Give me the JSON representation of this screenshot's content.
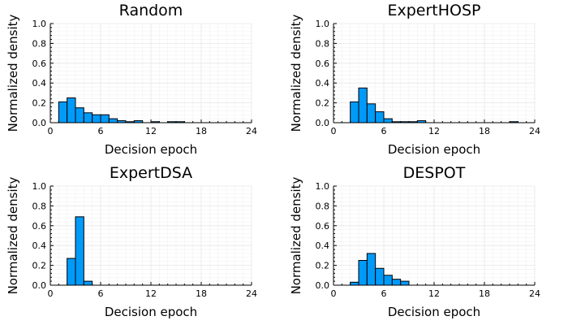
{
  "bar_color": "#009af9",
  "chart_data": [
    {
      "type": "bar",
      "title": "Random",
      "xlabel": "Decision epoch",
      "ylabel": "Normalized density",
      "xlim": [
        0,
        24
      ],
      "ylim": [
        0,
        1
      ],
      "xticks": [
        "0",
        "6",
        "12",
        "18",
        "24"
      ],
      "yticks": [
        "0.0",
        "0.2",
        "0.4",
        "0.6",
        "0.8",
        "1.0"
      ],
      "grid": true,
      "legend": "none",
      "bin_width": 1,
      "bins": [
        {
          "x": 1,
          "y": 0.21
        },
        {
          "x": 2,
          "y": 0.25
        },
        {
          "x": 3,
          "y": 0.15
        },
        {
          "x": 4,
          "y": 0.1
        },
        {
          "x": 5,
          "y": 0.08
        },
        {
          "x": 6,
          "y": 0.08
        },
        {
          "x": 7,
          "y": 0.04
        },
        {
          "x": 8,
          "y": 0.02
        },
        {
          "x": 9,
          "y": 0.01
        },
        {
          "x": 10,
          "y": 0.02
        },
        {
          "x": 12,
          "y": 0.01
        },
        {
          "x": 14,
          "y": 0.01
        },
        {
          "x": 15,
          "y": 0.01
        }
      ]
    },
    {
      "type": "bar",
      "title": "ExpertHOSP",
      "xlabel": "Decision epoch",
      "ylabel": "Normalized density",
      "xlim": [
        0,
        24
      ],
      "ylim": [
        0,
        1
      ],
      "xticks": [
        "0",
        "6",
        "12",
        "18",
        "24"
      ],
      "yticks": [
        "0.0",
        "0.2",
        "0.4",
        "0.6",
        "0.8",
        "1.0"
      ],
      "grid": true,
      "legend": "none",
      "bin_width": 1,
      "bins": [
        {
          "x": 2,
          "y": 0.21
        },
        {
          "x": 3,
          "y": 0.35
        },
        {
          "x": 4,
          "y": 0.19
        },
        {
          "x": 5,
          "y": 0.11
        },
        {
          "x": 6,
          "y": 0.04
        },
        {
          "x": 7,
          "y": 0.01
        },
        {
          "x": 8,
          "y": 0.01
        },
        {
          "x": 9,
          "y": 0.01
        },
        {
          "x": 10,
          "y": 0.02
        },
        {
          "x": 21,
          "y": 0.01
        }
      ]
    },
    {
      "type": "bar",
      "title": "ExpertDSA",
      "xlabel": "Decision epoch",
      "ylabel": "Normalized density",
      "xlim": [
        0,
        24
      ],
      "ylim": [
        0,
        1
      ],
      "xticks": [
        "0",
        "6",
        "12",
        "18",
        "24"
      ],
      "yticks": [
        "0.0",
        "0.2",
        "0.4",
        "0.6",
        "0.8",
        "1.0"
      ],
      "grid": true,
      "legend": "none",
      "bin_width": 1,
      "bins": [
        {
          "x": 2,
          "y": 0.27
        },
        {
          "x": 3,
          "y": 0.69
        },
        {
          "x": 4,
          "y": 0.04
        }
      ]
    },
    {
      "type": "bar",
      "title": "DESPOT",
      "xlabel": "Decision epoch",
      "ylabel": "Normalized density",
      "xlim": [
        0,
        24
      ],
      "ylim": [
        0,
        1
      ],
      "xticks": [
        "0",
        "6",
        "12",
        "18",
        "24"
      ],
      "yticks": [
        "0.0",
        "0.2",
        "0.4",
        "0.6",
        "0.8",
        "1.0"
      ],
      "grid": true,
      "legend": "none",
      "bin_width": 1,
      "bins": [
        {
          "x": 2,
          "y": 0.03
        },
        {
          "x": 3,
          "y": 0.25
        },
        {
          "x": 4,
          "y": 0.32
        },
        {
          "x": 5,
          "y": 0.17
        },
        {
          "x": 6,
          "y": 0.1
        },
        {
          "x": 7,
          "y": 0.06
        },
        {
          "x": 8,
          "y": 0.04
        }
      ]
    }
  ]
}
